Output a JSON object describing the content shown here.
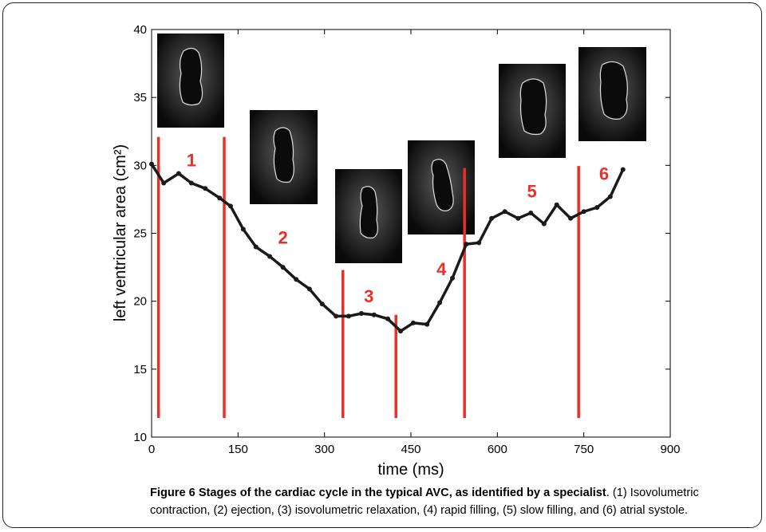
{
  "chart_data": {
    "type": "line",
    "xlabel": "time (ms)",
    "ylabel": "left ventricular area (cm²)",
    "xlim": [
      0,
      900
    ],
    "xticks": [
      0,
      150,
      300,
      450,
      600,
      750,
      900
    ],
    "ylim": [
      10,
      40
    ],
    "yticks": [
      10,
      15,
      20,
      25,
      30,
      35,
      40
    ],
    "series": [
      {
        "color": "#1a1a1a",
        "x": [
          0,
          21,
          47,
          69,
          93,
          118,
          137,
          159,
          181,
          205,
          228,
          251,
          274,
          296,
          320,
          342,
          364,
          386,
          410,
          432,
          454,
          478,
          500,
          522,
          546,
          568,
          590,
          613,
          636,
          658,
          681,
          703,
          727,
          750,
          773,
          796,
          818
        ],
        "values": [
          30.1,
          28.7,
          29.4,
          28.7,
          28.3,
          27.6,
          27.0,
          25.3,
          24.0,
          23.3,
          22.5,
          21.6,
          20.9,
          19.8,
          18.9,
          18.9,
          19.1,
          19.0,
          18.7,
          17.8,
          18.4,
          18.3,
          19.9,
          21.7,
          24.2,
          24.3,
          26.1,
          26.6,
          26.1,
          26.5,
          25.7,
          27.1,
          26.1,
          26.6,
          26.9,
          27.7,
          29.7
        ]
      }
    ],
    "stage_color": "#e8302a",
    "stage_boundaries": [
      {
        "x": 12,
        "y": [
          11.4,
          32.1
        ]
      },
      {
        "x": 126,
        "y": [
          11.4,
          32.1
        ]
      },
      {
        "x": 332,
        "y": [
          11.4,
          22.3
        ]
      },
      {
        "x": 424,
        "y": [
          11.4,
          19.0
        ]
      },
      {
        "x": 543,
        "y": [
          11.4,
          29.8
        ]
      },
      {
        "x": 741,
        "y": [
          11.4,
          29.95
        ]
      }
    ],
    "annotations": [
      {
        "text": "1",
        "x": 69,
        "y": 30.4
      },
      {
        "text": "2",
        "x": 228,
        "y": 24.7
      },
      {
        "text": "3",
        "x": 377,
        "y": 20.4
      },
      {
        "text": "4",
        "x": 503,
        "y": 22.4
      },
      {
        "text": "5",
        "x": 660,
        "y": 28.1
      },
      {
        "text": "6",
        "x": 785,
        "y": 29.4
      }
    ]
  },
  "caption": {
    "bold": "Figure 6 Stages of the cardiac cycle in the typical AVC, as identified by a specialist",
    "text": ". (1) Isovolumetric contraction, (2) ejection, (3) isovolumetric relaxation, (4) rapid filling, (5) slow filling, and (6) atrial systole."
  }
}
